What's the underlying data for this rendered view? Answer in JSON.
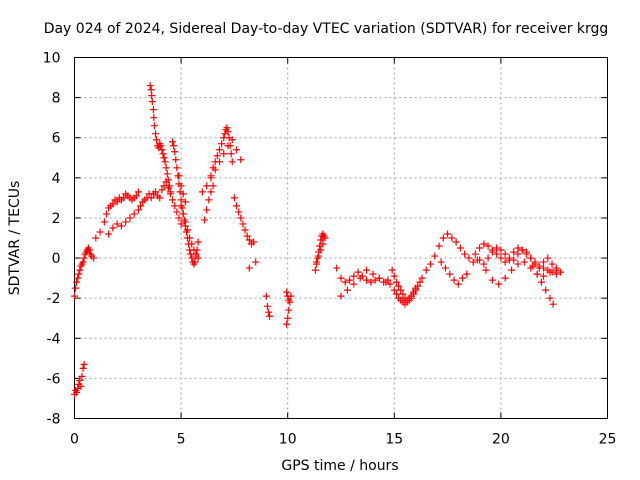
{
  "chart_data": {
    "type": "scatter",
    "title": "Day 024 of 2024, Sidereal Day-to-day VTEC variation (SDTVAR) for receiver krgg",
    "xlabel": "GPS time / hours",
    "ylabel": "SDTVAR / TECUs",
    "xlim": [
      0,
      25
    ],
    "ylim": [
      -8,
      10
    ],
    "xticks": [
      0,
      5,
      10,
      15,
      20,
      25
    ],
    "yticks": [
      -8,
      -6,
      -4,
      -2,
      0,
      2,
      4,
      6,
      8,
      10
    ],
    "grid": true,
    "marker": "+",
    "color": "#ff0000",
    "series": [
      {
        "name": "SDTVAR",
        "x": [
          0.0,
          0.05,
          0.1,
          0.15,
          0.2,
          0.25,
          0.3,
          0.35,
          0.4,
          0.45,
          0.0,
          0.05,
          0.1,
          0.15,
          0.2,
          0.25,
          0.3,
          0.35,
          0.4,
          0.45,
          0.5,
          0.55,
          0.6,
          0.65,
          0.7,
          0.75,
          0.8,
          0.9,
          1.0,
          1.2,
          1.4,
          1.5,
          1.6,
          1.7,
          1.8,
          1.9,
          2.0,
          2.1,
          2.2,
          2.3,
          2.4,
          2.5,
          2.6,
          2.7,
          2.8,
          2.9,
          3.0,
          1.6,
          1.8,
          2.0,
          2.2,
          2.4,
          2.6,
          2.8,
          3.0,
          3.1,
          3.2,
          3.3,
          3.4,
          3.5,
          3.55,
          3.6,
          3.62,
          3.65,
          3.7,
          3.72,
          3.75,
          3.8,
          3.85,
          3.9,
          3.95,
          4.0,
          4.05,
          4.1,
          4.15,
          4.2,
          4.25,
          4.3,
          4.35,
          4.4,
          4.45,
          4.5,
          3.6,
          3.7,
          3.8,
          3.9,
          4.0,
          4.1,
          4.2,
          4.3,
          4.4,
          4.5,
          4.6,
          4.7,
          4.8,
          4.9,
          5.0,
          4.6,
          4.65,
          4.7,
          4.75,
          4.8,
          4.85,
          4.9,
          4.95,
          5.0,
          5.05,
          5.1,
          5.15,
          5.2,
          5.25,
          5.3,
          5.35,
          5.4,
          5.45,
          5.5,
          5.55,
          5.6,
          5.65,
          5.7,
          5.75,
          5.8,
          5.0,
          5.1,
          5.2,
          5.3,
          5.4,
          5.5,
          5.6,
          5.7,
          5.8,
          4.9,
          5.0,
          5.1,
          5.2,
          6.0,
          6.2,
          6.4,
          6.6,
          6.8,
          7.0,
          7.2,
          7.4,
          7.6,
          7.8,
          6.4,
          6.5,
          6.6,
          6.7,
          6.8,
          6.9,
          7.0,
          7.05,
          7.1,
          7.15,
          7.2,
          7.25,
          7.3,
          7.35,
          7.4,
          6.1,
          6.2,
          6.3,
          6.4,
          6.5,
          7.5,
          7.6,
          7.7,
          7.8,
          7.9,
          8.0,
          8.1,
          8.2,
          8.3,
          8.4,
          8.5,
          8.2,
          9.0,
          9.05,
          9.1,
          9.15,
          9.95,
          10.0,
          10.05,
          10.1,
          10.15,
          9.95,
          10.0,
          10.05,
          11.3,
          11.35,
          11.4,
          11.45,
          11.5,
          11.55,
          11.6,
          11.65,
          11.7,
          11.75,
          11.35,
          11.45,
          11.55,
          11.65,
          12.3,
          12.5,
          12.7,
          12.9,
          13.1,
          13.3,
          13.5,
          13.7,
          13.9,
          14.1,
          14.3,
          14.5,
          14.7,
          12.5,
          12.8,
          13.1,
          13.4,
          13.7,
          14.0,
          14.3,
          14.6,
          14.8,
          15.0,
          15.1,
          15.2,
          15.3,
          15.4,
          15.5,
          15.6,
          15.7,
          15.8,
          15.9,
          16.0,
          16.1,
          16.2,
          14.9,
          15.0,
          15.1,
          15.2,
          15.3,
          15.4,
          15.5,
          15.6,
          15.7,
          15.8,
          15.9,
          16.0,
          16.3,
          16.5,
          16.7,
          16.9,
          17.1,
          17.3,
          17.5,
          17.7,
          17.9,
          18.1,
          18.3,
          18.5,
          18.7,
          18.9,
          17.2,
          17.4,
          17.6,
          17.8,
          18.0,
          18.2,
          18.4,
          18.8,
          19.0,
          19.2,
          19.4,
          19.6,
          19.8,
          20.0,
          20.2,
          20.4,
          20.6,
          20.8,
          21.0,
          21.2,
          21.4,
          21.6,
          21.8,
          22.0,
          22.2,
          22.4,
          22.6,
          22.8,
          19.2,
          19.4,
          19.6,
          19.8,
          20.0,
          20.2,
          20.4,
          20.6,
          20.8,
          21.0,
          21.2,
          21.4,
          21.6,
          21.8,
          22.0,
          22.2,
          22.4,
          22.6,
          19.0,
          19.3,
          19.6,
          19.9,
          20.2,
          20.5,
          20.8,
          21.1,
          21.4,
          21.7,
          22.0,
          22.3,
          22.6,
          21.5,
          21.7,
          21.9,
          22.1,
          22.3,
          22.45
        ],
        "y": [
          -6.8,
          -6.6,
          -6.7,
          -6.5,
          -6.3,
          -6.1,
          -6.4,
          -5.9,
          -5.5,
          -5.3,
          -1.9,
          -1.5,
          -1.2,
          -1.0,
          -0.8,
          -0.6,
          -0.4,
          -0.3,
          -0.2,
          0.0,
          0.2,
          0.3,
          0.4,
          0.5,
          0.4,
          0.2,
          0.1,
          0.0,
          1.0,
          1.3,
          1.8,
          2.2,
          2.5,
          2.6,
          2.7,
          2.9,
          2.8,
          3.0,
          2.9,
          3.0,
          3.2,
          3.1,
          3.0,
          2.9,
          3.0,
          3.1,
          3.3,
          1.2,
          1.5,
          1.7,
          1.6,
          1.8,
          2.0,
          2.2,
          2.4,
          2.6,
          2.8,
          2.9,
          3.0,
          3.2,
          8.6,
          8.4,
          8.1,
          7.8,
          7.4,
          7.0,
          6.6,
          6.2,
          5.9,
          5.6,
          5.5,
          5.7,
          5.6,
          5.4,
          5.2,
          5.0,
          4.8,
          4.5,
          4.2,
          3.9,
          3.6,
          3.3,
          3.0,
          3.2,
          3.3,
          3.1,
          3.0,
          3.4,
          3.6,
          3.8,
          3.5,
          3.2,
          2.9,
          2.6,
          2.3,
          2.0,
          1.7,
          5.8,
          5.6,
          5.3,
          4.9,
          4.5,
          4.1,
          3.7,
          3.3,
          2.9,
          2.5,
          2.2,
          1.9,
          1.6,
          1.3,
          1.0,
          0.7,
          0.4,
          0.2,
          0.0,
          -0.2,
          -0.3,
          -0.2,
          0.1,
          0.4,
          0.8,
          2.6,
          2.2,
          1.8,
          1.4,
          1.0,
          0.7,
          0.4,
          0.2,
          0.0,
          4.1,
          3.6,
          3.2,
          2.8,
          3.3,
          3.6,
          4.0,
          4.4,
          4.8,
          5.2,
          5.6,
          5.9,
          5.4,
          4.9,
          4.1,
          4.5,
          4.8,
          5.1,
          5.4,
          5.7,
          6.0,
          6.2,
          6.4,
          6.5,
          6.3,
          6.0,
          5.6,
          5.2,
          4.8,
          1.9,
          2.4,
          2.9,
          3.3,
          3.6,
          3.0,
          2.6,
          2.3,
          2.0,
          1.7,
          1.4,
          1.1,
          0.9,
          0.7,
          0.8,
          -0.2,
          -0.5,
          -1.9,
          -2.4,
          -2.7,
          -2.9,
          -3.3,
          -3.0,
          -2.6,
          -2.2,
          -1.9,
          -1.7,
          -1.9,
          -2.1,
          -0.6,
          -0.3,
          0.0,
          0.3,
          0.6,
          0.9,
          1.1,
          1.2,
          1.1,
          1.0,
          -0.2,
          0.1,
          0.4,
          0.7,
          -0.5,
          -1.0,
          -1.2,
          -1.1,
          -0.9,
          -0.7,
          -0.9,
          -1.1,
          -1.2,
          -1.1,
          -1.0,
          -1.2,
          -1.1,
          -1.9,
          -1.6,
          -1.3,
          -1.0,
          -0.6,
          -0.8,
          -1.0,
          -1.2,
          -1.3,
          -1.6,
          -1.8,
          -2.0,
          -2.1,
          -2.2,
          -2.3,
          -2.2,
          -2.1,
          -2.0,
          -1.8,
          -1.6,
          -1.4,
          -1.2,
          -0.6,
          -0.9,
          -1.2,
          -1.4,
          -1.6,
          -1.8,
          -2.0,
          -2.1,
          -2.0,
          -1.9,
          -1.7,
          -1.5,
          -1.0,
          -0.6,
          -0.3,
          0.1,
          0.6,
          1.0,
          1.2,
          1.0,
          0.8,
          0.5,
          0.2,
          0.0,
          -0.2,
          -0.1,
          -0.2,
          -0.5,
          -0.8,
          -1.1,
          -1.3,
          -1.0,
          -0.8,
          0.2,
          0.5,
          0.7,
          0.6,
          0.4,
          0.2,
          0.0,
          -0.2,
          -0.1,
          0.3,
          0.5,
          0.4,
          0.2,
          0.0,
          -0.2,
          -0.4,
          -0.5,
          -0.6,
          -0.7,
          -0.8,
          -0.7,
          -0.3,
          0.0,
          0.3,
          0.5,
          0.4,
          0.2,
          0.0,
          -0.1,
          0.2,
          0.4,
          0.3,
          0.0,
          -0.3,
          -0.5,
          -0.2,
          0.0,
          -0.3,
          -0.6,
          -0.1,
          -0.6,
          -1.1,
          -1.3,
          -1.0,
          -0.6,
          -0.3,
          -0.2,
          -0.5,
          -0.8,
          -0.9,
          -0.7,
          -0.5,
          -0.4,
          -0.8,
          -1.2,
          -1.6,
          -2.0,
          -2.3
        ]
      }
    ]
  }
}
